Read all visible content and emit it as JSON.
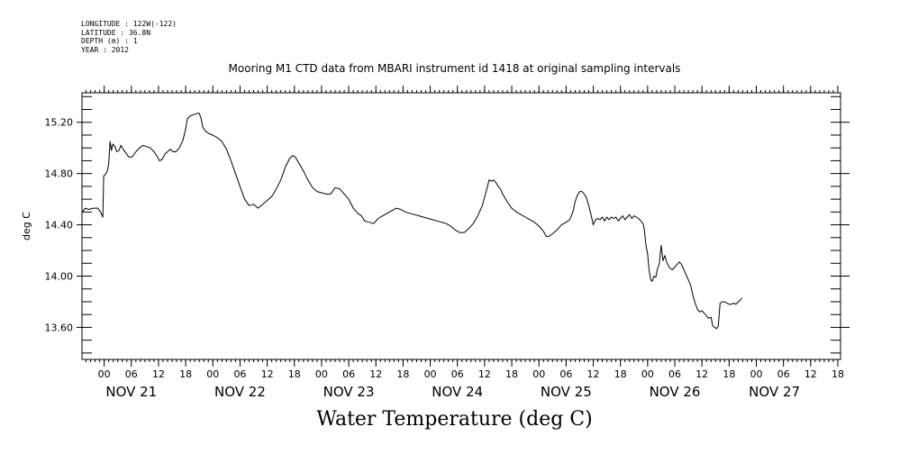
{
  "header": {
    "meta_lines": [
      "LONGITUDE : 122W(-122)",
      "LATITUDE : 36.8N",
      "DEPTH (m) : 1",
      "YEAR : 2012"
    ]
  },
  "chart_data": {
    "type": "line",
    "title": "Mooring M1 CTD data from MBARI instrument id 1418 at original sampling intervals",
    "xlabel": "Water Temperature (deg C)",
    "ylabel": "deg C",
    "ylim": [
      13.35,
      15.43
    ],
    "yticks": [
      13.6,
      14.0,
      14.4,
      14.8,
      15.2
    ],
    "ytick_labels": [
      "13.60",
      "14.00",
      "14.40",
      "14.80",
      "15.20"
    ],
    "x_unit": "hours since 2012-11-20 00:00",
    "xlim": [
      19.1,
      186.6
    ],
    "hour_ticks": [
      {
        "h": 24,
        "label": "00"
      },
      {
        "h": 30,
        "label": "06"
      },
      {
        "h": 36,
        "label": "12"
      },
      {
        "h": 42,
        "label": "18"
      },
      {
        "h": 48,
        "label": "00"
      },
      {
        "h": 54,
        "label": "06"
      },
      {
        "h": 60,
        "label": "12"
      },
      {
        "h": 66,
        "label": "18"
      },
      {
        "h": 72,
        "label": "00"
      },
      {
        "h": 78,
        "label": "06"
      },
      {
        "h": 84,
        "label": "12"
      },
      {
        "h": 90,
        "label": "18"
      },
      {
        "h": 96,
        "label": "00"
      },
      {
        "h": 102,
        "label": "06"
      },
      {
        "h": 108,
        "label": "12"
      },
      {
        "h": 114,
        "label": "18"
      },
      {
        "h": 120,
        "label": "00"
      },
      {
        "h": 126,
        "label": "06"
      },
      {
        "h": 132,
        "label": "12"
      },
      {
        "h": 138,
        "label": "18"
      },
      {
        "h": 144,
        "label": "00"
      },
      {
        "h": 150,
        "label": "06"
      },
      {
        "h": 156,
        "label": "12"
      },
      {
        "h": 162,
        "label": "18"
      },
      {
        "h": 168,
        "label": "00"
      },
      {
        "h": 174,
        "label": "06"
      },
      {
        "h": 180,
        "label": "12"
      },
      {
        "h": 186,
        "label": "18"
      }
    ],
    "day_labels": [
      {
        "h": 30,
        "label": "NOV 21"
      },
      {
        "h": 54,
        "label": "NOV 22"
      },
      {
        "h": 78,
        "label": "NOV 23"
      },
      {
        "h": 102,
        "label": "NOV 24"
      },
      {
        "h": 126,
        "label": "NOV 25"
      },
      {
        "h": 150,
        "label": "NOV 26"
      },
      {
        "h": 172,
        "label": "NOV 27"
      }
    ],
    "series": [
      {
        "color": "#000000",
        "points": [
          [
            19.2,
            14.5
          ],
          [
            19.8,
            14.53
          ],
          [
            20.6,
            14.52
          ],
          [
            21.6,
            14.53
          ],
          [
            22.6,
            14.53
          ],
          [
            23.2,
            14.5
          ],
          [
            23.7,
            14.46
          ],
          [
            23.9,
            14.78
          ],
          [
            24.4,
            14.8
          ],
          [
            24.7,
            14.82
          ],
          [
            25.0,
            14.88
          ],
          [
            25.3,
            15.05
          ],
          [
            25.6,
            14.98
          ],
          [
            25.9,
            15.03
          ],
          [
            26.4,
            15.01
          ],
          [
            26.8,
            14.97
          ],
          [
            27.3,
            14.98
          ],
          [
            27.7,
            15.02
          ],
          [
            28.2,
            14.99
          ],
          [
            28.8,
            14.96
          ],
          [
            29.4,
            14.93
          ],
          [
            30.2,
            14.93
          ],
          [
            31.0,
            14.97
          ],
          [
            31.8,
            15.0
          ],
          [
            32.6,
            15.02
          ],
          [
            33.4,
            15.01
          ],
          [
            34.2,
            15.0
          ],
          [
            35.0,
            14.97
          ],
          [
            35.6,
            14.94
          ],
          [
            36.2,
            14.9
          ],
          [
            36.8,
            14.91
          ],
          [
            37.4,
            14.95
          ],
          [
            38.0,
            14.97
          ],
          [
            38.6,
            14.99
          ],
          [
            39.2,
            14.97
          ],
          [
            39.8,
            14.97
          ],
          [
            40.6,
            15.0
          ],
          [
            41.4,
            15.06
          ],
          [
            42.0,
            15.15
          ],
          [
            42.4,
            15.23
          ],
          [
            43.0,
            15.25
          ],
          [
            43.8,
            15.26
          ],
          [
            44.6,
            15.27
          ],
          [
            45.0,
            15.27
          ],
          [
            45.4,
            15.23
          ],
          [
            45.8,
            15.16
          ],
          [
            46.4,
            15.13
          ],
          [
            47.2,
            15.11
          ],
          [
            48.0,
            15.1
          ],
          [
            49.0,
            15.08
          ],
          [
            50.0,
            15.05
          ],
          [
            51.0,
            14.99
          ],
          [
            52.0,
            14.9
          ],
          [
            53.0,
            14.8
          ],
          [
            54.0,
            14.7
          ],
          [
            55.0,
            14.6
          ],
          [
            56.0,
            14.55
          ],
          [
            57.0,
            14.56
          ],
          [
            58.0,
            14.53
          ],
          [
            59.0,
            14.56
          ],
          [
            60.0,
            14.59
          ],
          [
            61.0,
            14.62
          ],
          [
            62.0,
            14.68
          ],
          [
            63.0,
            14.75
          ],
          [
            64.0,
            14.85
          ],
          [
            65.0,
            14.92
          ],
          [
            65.6,
            14.94
          ],
          [
            66.2,
            14.93
          ],
          [
            67.0,
            14.88
          ],
          [
            68.0,
            14.82
          ],
          [
            69.0,
            14.75
          ],
          [
            70.0,
            14.69
          ],
          [
            71.0,
            14.66
          ],
          [
            72.0,
            14.65
          ],
          [
            73.0,
            14.64
          ],
          [
            74.0,
            14.64
          ],
          [
            75.0,
            14.69
          ],
          [
            76.0,
            14.68
          ],
          [
            77.0,
            14.64
          ],
          [
            78.0,
            14.6
          ],
          [
            79.0,
            14.53
          ],
          [
            80.0,
            14.49
          ],
          [
            80.8,
            14.47
          ],
          [
            81.5,
            14.43
          ],
          [
            82.5,
            14.42
          ],
          [
            83.5,
            14.41
          ],
          [
            84.5,
            14.45
          ],
          [
            85.5,
            14.47
          ],
          [
            86.5,
            14.49
          ],
          [
            87.5,
            14.51
          ],
          [
            88.5,
            14.53
          ],
          [
            89.5,
            14.52
          ],
          [
            90.5,
            14.5
          ],
          [
            91.5,
            14.49
          ],
          [
            92.5,
            14.48
          ],
          [
            93.5,
            14.47
          ],
          [
            94.5,
            14.46
          ],
          [
            95.5,
            14.45
          ],
          [
            96.5,
            14.44
          ],
          [
            97.5,
            14.43
          ],
          [
            98.5,
            14.42
          ],
          [
            99.5,
            14.41
          ],
          [
            100.5,
            14.39
          ],
          [
            101.5,
            14.36
          ],
          [
            102.5,
            14.34
          ],
          [
            103.5,
            14.34
          ],
          [
            104.5,
            14.37
          ],
          [
            105.5,
            14.41
          ],
          [
            106.5,
            14.47
          ],
          [
            107.5,
            14.55
          ],
          [
            108.5,
            14.68
          ],
          [
            109.0,
            14.75
          ],
          [
            109.5,
            14.74
          ],
          [
            110.0,
            14.75
          ],
          [
            110.5,
            14.73
          ],
          [
            111.0,
            14.7
          ],
          [
            111.5,
            14.68
          ],
          [
            112.0,
            14.64
          ],
          [
            113.0,
            14.58
          ],
          [
            114.0,
            14.53
          ],
          [
            115.0,
            14.5
          ],
          [
            116.0,
            14.48
          ],
          [
            117.0,
            14.46
          ],
          [
            118.0,
            14.44
          ],
          [
            119.0,
            14.42
          ],
          [
            120.0,
            14.39
          ],
          [
            121.0,
            14.35
          ],
          [
            121.6,
            14.31
          ],
          [
            122.2,
            14.31
          ],
          [
            123.0,
            14.33
          ],
          [
            124.0,
            14.36
          ],
          [
            125.0,
            14.4
          ],
          [
            126.0,
            14.42
          ],
          [
            126.8,
            14.44
          ],
          [
            127.5,
            14.5
          ],
          [
            128.0,
            14.58
          ],
          [
            128.5,
            14.63
          ],
          [
            129.0,
            14.66
          ],
          [
            129.5,
            14.66
          ],
          [
            130.0,
            14.64
          ],
          [
            130.5,
            14.61
          ],
          [
            131.0,
            14.55
          ],
          [
            131.5,
            14.48
          ],
          [
            132.0,
            14.4
          ],
          [
            132.5,
            14.44
          ],
          [
            133.0,
            14.45
          ],
          [
            133.5,
            14.44
          ],
          [
            134.0,
            14.46
          ],
          [
            134.5,
            14.43
          ],
          [
            135.0,
            14.46
          ],
          [
            135.5,
            14.44
          ],
          [
            136.0,
            14.46
          ],
          [
            136.5,
            14.45
          ],
          [
            137.0,
            14.46
          ],
          [
            137.5,
            14.43
          ],
          [
            138.0,
            14.45
          ],
          [
            138.5,
            14.47
          ],
          [
            139.0,
            14.44
          ],
          [
            139.5,
            14.46
          ],
          [
            140.0,
            14.48
          ],
          [
            140.5,
            14.45
          ],
          [
            141.0,
            14.47
          ],
          [
            141.5,
            14.46
          ],
          [
            142.0,
            14.45
          ],
          [
            142.5,
            14.43
          ],
          [
            143.0,
            14.41
          ],
          [
            143.3,
            14.36
          ],
          [
            143.6,
            14.25
          ],
          [
            144.0,
            14.17
          ],
          [
            144.3,
            14.05
          ],
          [
            144.7,
            13.97
          ],
          [
            145.0,
            13.96
          ],
          [
            145.4,
            14.0
          ],
          [
            145.8,
            13.99
          ],
          [
            146.2,
            14.06
          ],
          [
            146.6,
            14.1
          ],
          [
            147.0,
            14.24
          ],
          [
            147.4,
            14.12
          ],
          [
            147.8,
            14.16
          ],
          [
            148.2,
            14.11
          ],
          [
            148.6,
            14.08
          ],
          [
            149.0,
            14.06
          ],
          [
            149.5,
            14.05
          ],
          [
            150.0,
            14.07
          ],
          [
            150.5,
            14.09
          ],
          [
            151.0,
            14.11
          ],
          [
            151.5,
            14.09
          ],
          [
            152.0,
            14.05
          ],
          [
            152.5,
            14.01
          ],
          [
            153.0,
            13.97
          ],
          [
            153.5,
            13.93
          ],
          [
            154.0,
            13.85
          ],
          [
            154.5,
            13.79
          ],
          [
            155.0,
            13.74
          ],
          [
            155.5,
            13.72
          ],
          [
            156.0,
            13.73
          ],
          [
            156.5,
            13.71
          ],
          [
            157.0,
            13.69
          ],
          [
            157.5,
            13.67
          ],
          [
            158.0,
            13.68
          ],
          [
            158.4,
            13.61
          ],
          [
            158.8,
            13.6
          ],
          [
            159.2,
            13.59
          ],
          [
            159.6,
            13.61
          ],
          [
            160.0,
            13.79
          ],
          [
            160.5,
            13.8
          ],
          [
            161.0,
            13.8
          ],
          [
            161.5,
            13.79
          ],
          [
            162.0,
            13.78
          ],
          [
            162.5,
            13.78
          ],
          [
            163.0,
            13.79
          ],
          [
            163.5,
            13.78
          ],
          [
            164.0,
            13.8
          ],
          [
            164.4,
            13.81
          ],
          [
            164.8,
            13.83
          ]
        ]
      }
    ]
  }
}
